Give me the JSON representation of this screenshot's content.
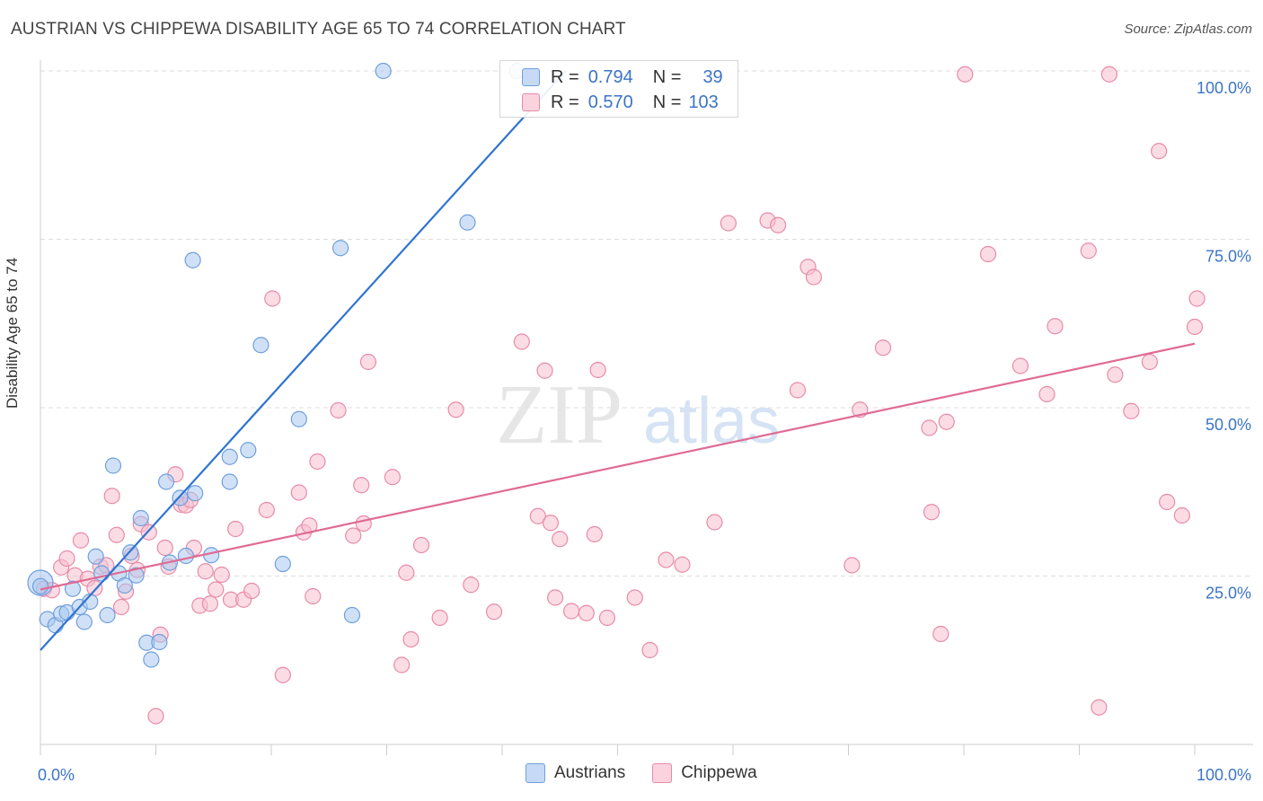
{
  "title": "AUSTRIAN VS CHIPPEWA DISABILITY AGE 65 TO 74 CORRELATION CHART",
  "source": "Source: ZipAtlas.com",
  "watermark": {
    "zip": "ZIP",
    "atlas": "atlas"
  },
  "legend": {
    "rows": [
      {
        "r_label": "R =",
        "r_value": "0.794",
        "n_label": "N =",
        "n_value": "39"
      },
      {
        "r_label": "R =",
        "r_value": "0.570",
        "n_label": "N =",
        "n_value": "103"
      }
    ]
  },
  "bottom_legend": [
    "Austrians",
    "Chippewa"
  ],
  "colors": {
    "austrians_fill": "#a9c8f0",
    "austrians_stroke": "#6f9fdc",
    "austrians_line": "#2f74d0",
    "chippewa_fill": "#f7bfd0",
    "chippewa_stroke": "#e88aa8",
    "chippewa_line": "#e06b95",
    "tick_label": "#3b74c7",
    "grid": "#dddddd"
  },
  "chart_data": {
    "type": "scatter",
    "title": "AUSTRIAN VS CHIPPEWA DISABILITY AGE 65 TO 74 CORRELATION CHART",
    "xlabel": "",
    "ylabel": "Disability Age 65 to 74",
    "xlim": [
      0,
      100
    ],
    "ylim": [
      0,
      100
    ],
    "x_tick_labels": [
      "0.0%",
      "100.0%"
    ],
    "y_tick_labels": [
      "25.0%",
      "50.0%",
      "75.0%",
      "100.0%"
    ],
    "y_ticks": [
      25,
      50,
      75,
      100
    ],
    "grid": true,
    "legend_position": "top-center",
    "series": [
      {
        "name": "Austrians",
        "r": 0.794,
        "n": 39,
        "trend": {
          "x": [
            0,
            45.5
          ],
          "y": [
            14.0,
            100.0
          ]
        },
        "points": [
          [
            0.0,
            23.5
          ],
          [
            0.6,
            18.6
          ],
          [
            1.3,
            17.7
          ],
          [
            1.8,
            19.4
          ],
          [
            2.3,
            19.6
          ],
          [
            2.8,
            23.1
          ],
          [
            3.4,
            20.4
          ],
          [
            3.8,
            18.2
          ],
          [
            4.3,
            21.2
          ],
          [
            4.8,
            27.9
          ],
          [
            5.3,
            25.4
          ],
          [
            5.8,
            19.2
          ],
          [
            6.3,
            41.4
          ],
          [
            6.8,
            25.4
          ],
          [
            7.3,
            23.6
          ],
          [
            7.8,
            28.5
          ],
          [
            8.3,
            25.1
          ],
          [
            8.7,
            33.6
          ],
          [
            9.2,
            15.1
          ],
          [
            9.6,
            12.6
          ],
          [
            10.3,
            15.2
          ],
          [
            10.9,
            39.0
          ],
          [
            11.2,
            27.0
          ],
          [
            12.1,
            36.6
          ],
          [
            12.6,
            28.0
          ],
          [
            13.4,
            37.3
          ],
          [
            14.8,
            28.1
          ],
          [
            13.2,
            71.9
          ],
          [
            16.4,
            42.7
          ],
          [
            16.4,
            39.0
          ],
          [
            18.0,
            43.7
          ],
          [
            19.1,
            59.3
          ],
          [
            21.0,
            26.8
          ],
          [
            22.4,
            48.3
          ],
          [
            26.0,
            73.7
          ],
          [
            27.0,
            19.2
          ],
          [
            29.7,
            100.0
          ],
          [
            37.0,
            77.5
          ],
          [
            41.3,
            100.0
          ]
        ]
      },
      {
        "name": "Chippewa",
        "r": 0.57,
        "n": 103,
        "trend": {
          "x": [
            0,
            100
          ],
          "y": [
            23.0,
            59.5
          ]
        },
        "points": [
          [
            0.3,
            23.1
          ],
          [
            1.8,
            26.3
          ],
          [
            2.3,
            27.6
          ],
          [
            3.0,
            25.1
          ],
          [
            3.5,
            30.3
          ],
          [
            4.1,
            24.6
          ],
          [
            4.7,
            23.2
          ],
          [
            5.2,
            26.4
          ],
          [
            5.7,
            26.6
          ],
          [
            6.2,
            36.9
          ],
          [
            6.6,
            31.1
          ],
          [
            7.0,
            20.4
          ],
          [
            7.4,
            22.7
          ],
          [
            7.9,
            28.0
          ],
          [
            8.4,
            25.9
          ],
          [
            8.7,
            32.7
          ],
          [
            9.4,
            31.5
          ],
          [
            10.0,
            4.2
          ],
          [
            10.4,
            16.3
          ],
          [
            10.8,
            29.2
          ],
          [
            11.1,
            26.4
          ],
          [
            11.7,
            40.1
          ],
          [
            12.2,
            35.6
          ],
          [
            12.6,
            35.5
          ],
          [
            13.0,
            36.3
          ],
          [
            13.3,
            29.2
          ],
          [
            13.8,
            20.6
          ],
          [
            14.3,
            25.7
          ],
          [
            14.7,
            20.9
          ],
          [
            15.2,
            23.0
          ],
          [
            15.7,
            25.2
          ],
          [
            16.5,
            21.5
          ],
          [
            16.9,
            32.0
          ],
          [
            17.6,
            21.5
          ],
          [
            18.3,
            22.8
          ],
          [
            19.6,
            34.8
          ],
          [
            20.1,
            66.2
          ],
          [
            21.0,
            10.3
          ],
          [
            22.4,
            37.4
          ],
          [
            22.8,
            31.5
          ],
          [
            23.3,
            32.5
          ],
          [
            23.6,
            22.0
          ],
          [
            24.0,
            42.0
          ],
          [
            25.8,
            49.6
          ],
          [
            27.1,
            31.0
          ],
          [
            27.8,
            38.5
          ],
          [
            28.0,
            32.8
          ],
          [
            28.4,
            56.8
          ],
          [
            30.5,
            39.7
          ],
          [
            31.3,
            11.8
          ],
          [
            31.7,
            25.5
          ],
          [
            32.1,
            15.6
          ],
          [
            33.0,
            29.6
          ],
          [
            34.6,
            18.8
          ],
          [
            36.0,
            49.7
          ],
          [
            37.3,
            23.7
          ],
          [
            39.3,
            19.7
          ],
          [
            41.7,
            59.8
          ],
          [
            43.1,
            33.9
          ],
          [
            43.7,
            55.5
          ],
          [
            44.2,
            32.9
          ],
          [
            44.6,
            21.8
          ],
          [
            45.0,
            30.5
          ],
          [
            46.0,
            19.8
          ],
          [
            47.3,
            19.5
          ],
          [
            48.0,
            31.2
          ],
          [
            48.3,
            55.6
          ],
          [
            49.1,
            18.8
          ],
          [
            51.5,
            21.8
          ],
          [
            52.8,
            14.0
          ],
          [
            54.2,
            27.4
          ],
          [
            55.6,
            26.7
          ],
          [
            58.4,
            33.0
          ],
          [
            59.6,
            77.4
          ],
          [
            63.0,
            77.8
          ],
          [
            63.9,
            77.1
          ],
          [
            65.6,
            52.6
          ],
          [
            66.5,
            70.9
          ],
          [
            67.0,
            69.4
          ],
          [
            71.0,
            49.7
          ],
          [
            70.3,
            26.6
          ],
          [
            73.0,
            58.9
          ],
          [
            77.0,
            47.0
          ],
          [
            77.2,
            34.5
          ],
          [
            78.0,
            16.4
          ],
          [
            78.5,
            47.9
          ],
          [
            80.1,
            99.5
          ],
          [
            82.1,
            72.8
          ],
          [
            84.9,
            56.2
          ],
          [
            87.2,
            52.0
          ],
          [
            87.9,
            62.1
          ],
          [
            90.8,
            73.3
          ],
          [
            91.7,
            5.5
          ],
          [
            92.6,
            99.5
          ],
          [
            93.1,
            54.9
          ],
          [
            94.5,
            49.5
          ],
          [
            96.1,
            56.8
          ],
          [
            96.9,
            88.1
          ],
          [
            97.6,
            36.0
          ],
          [
            98.9,
            34.0
          ],
          [
            100.0,
            62.0
          ],
          [
            100.2,
            66.2
          ],
          [
            1.0,
            22.9
          ]
        ]
      }
    ]
  }
}
